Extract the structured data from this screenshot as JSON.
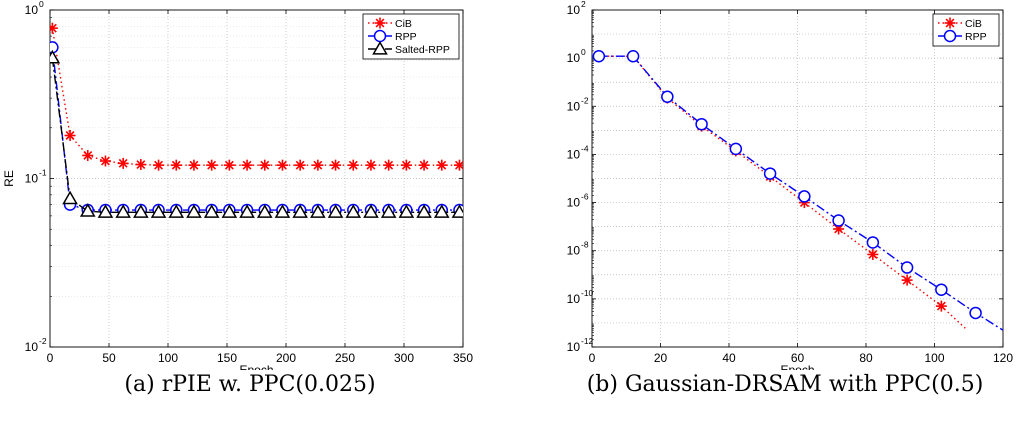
{
  "chart_data": [
    {
      "type": "line",
      "caption": "(a) rPIE w. PPC(0.025)",
      "xlabel": "Epoch",
      "ylabel": "RE",
      "xlim": [
        0,
        350
      ],
      "ylim": [
        0.01,
        1
      ],
      "yscale": "log",
      "xticks": [
        0,
        50,
        100,
        150,
        200,
        250,
        300,
        350
      ],
      "xtick_labels": [
        "0",
        "50",
        "100",
        "150",
        "200",
        "250",
        "300",
        "350"
      ],
      "ytick_exponents": [
        -2,
        -1,
        0
      ],
      "ytick_base": "10",
      "grid": true,
      "legend_position": "top-right",
      "series": [
        {
          "name": "CiB",
          "color": "#ff0000",
          "line": "dotted",
          "marker": "asterisk",
          "x": [
            2,
            17,
            32,
            47,
            62,
            77,
            92,
            107,
            122,
            137,
            152,
            167,
            182,
            197,
            212,
            227,
            242,
            257,
            272,
            287,
            302,
            317,
            332,
            347
          ],
          "y": [
            0.78,
            0.18,
            0.137,
            0.127,
            0.123,
            0.121,
            0.12,
            0.12,
            0.12,
            0.12,
            0.12,
            0.12,
            0.12,
            0.12,
            0.12,
            0.12,
            0.12,
            0.12,
            0.12,
            0.12,
            0.12,
            0.12,
            0.12,
            0.12
          ]
        },
        {
          "name": "RPP",
          "color": "#0000ff",
          "line": "dashdot",
          "marker": "circle",
          "x": [
            2,
            17,
            32,
            47,
            62,
            77,
            92,
            107,
            122,
            137,
            152,
            167,
            182,
            197,
            212,
            227,
            242,
            257,
            272,
            287,
            302,
            317,
            332,
            347
          ],
          "y": [
            0.6,
            0.07,
            0.065,
            0.065,
            0.065,
            0.065,
            0.065,
            0.065,
            0.065,
            0.065,
            0.065,
            0.065,
            0.065,
            0.065,
            0.065,
            0.065,
            0.065,
            0.065,
            0.065,
            0.065,
            0.065,
            0.065,
            0.065,
            0.065
          ]
        },
        {
          "name": "Salted-RPP",
          "color": "#000000",
          "line": "dashdot",
          "marker": "triangle",
          "x": [
            2,
            17,
            32,
            47,
            62,
            77,
            92,
            107,
            122,
            137,
            152,
            167,
            182,
            197,
            212,
            227,
            242,
            257,
            272,
            287,
            302,
            317,
            332,
            347
          ],
          "y": [
            0.52,
            0.076,
            0.064,
            0.063,
            0.063,
            0.063,
            0.063,
            0.063,
            0.063,
            0.063,
            0.063,
            0.063,
            0.063,
            0.063,
            0.063,
            0.063,
            0.063,
            0.063,
            0.063,
            0.063,
            0.063,
            0.063,
            0.063,
            0.063
          ]
        }
      ]
    },
    {
      "type": "line",
      "caption": "(b) Gaussian-DRSAM with PPC(0.5)",
      "xlabel": "Epoch",
      "ylabel": "",
      "xlim": [
        0,
        120
      ],
      "ylim": [
        1e-12,
        100
      ],
      "yscale": "log",
      "xticks": [
        0,
        20,
        40,
        60,
        80,
        100,
        120
      ],
      "xtick_labels": [
        "0",
        "20",
        "40",
        "60",
        "80",
        "100",
        "120"
      ],
      "ytick_exponents": [
        -12,
        -10,
        -8,
        -6,
        -4,
        -2,
        0,
        2
      ],
      "ytick_base": "10",
      "grid": true,
      "legend_position": "top-right",
      "series": [
        {
          "name": "CiB",
          "color": "#ff0000",
          "line": "dotted",
          "marker": "asterisk",
          "x": [
            2,
            12,
            22,
            32,
            42,
            52,
            62,
            72,
            82,
            92,
            102,
            109
          ],
          "y": [
            1.2,
            1.2,
            0.022,
            0.0015,
            0.00014,
            1.2e-05,
            1e-06,
            8e-08,
            7e-09,
            6e-10,
            5e-11,
            6e-12
          ],
          "markers_count": 11
        },
        {
          "name": "RPP",
          "color": "#0000ff",
          "line": "dashdot",
          "marker": "circle",
          "x": [
            2,
            12,
            22,
            32,
            42,
            52,
            62,
            72,
            82,
            92,
            102,
            112,
            120
          ],
          "y": [
            1.2,
            1.2,
            0.025,
            0.0018,
            0.00017,
            1.6e-05,
            1.8e-06,
            1.8e-07,
            2.2e-08,
            2e-09,
            2.4e-10,
            2.6e-11,
            5e-12
          ],
          "markers_count": 12
        }
      ]
    }
  ]
}
